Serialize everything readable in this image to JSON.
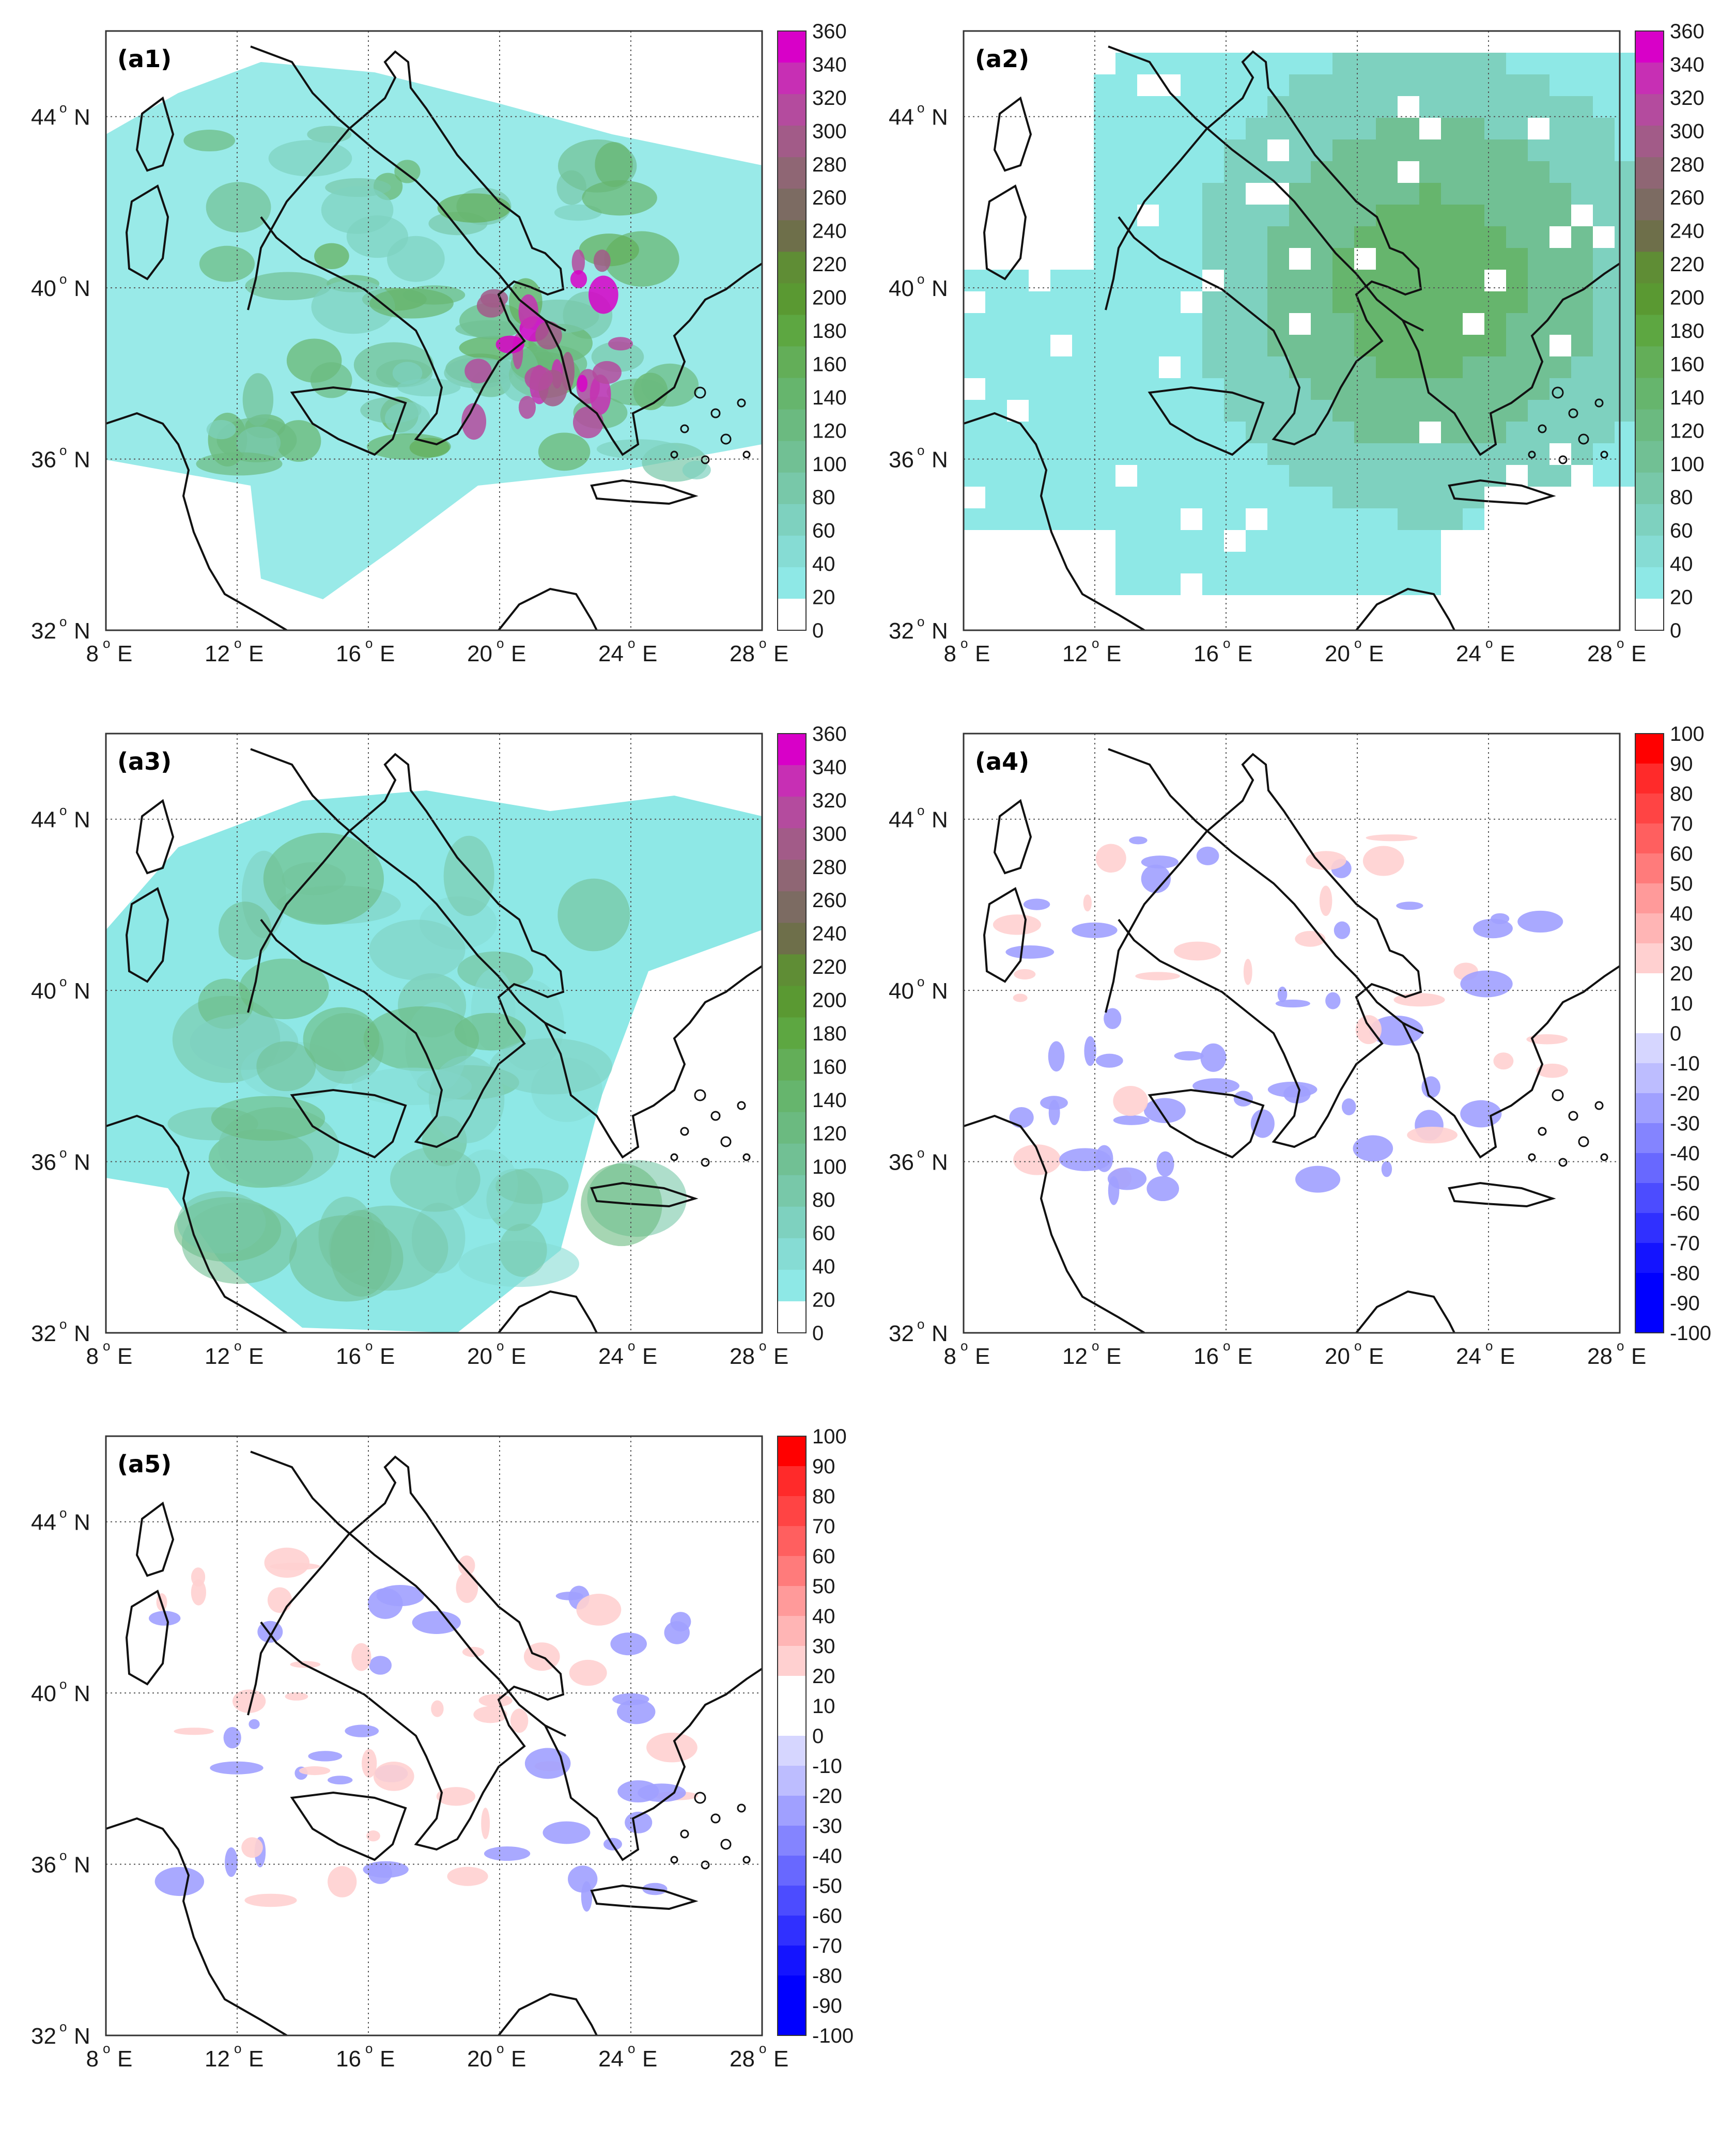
{
  "figure": {
    "x_ticks": [
      "8",
      "12",
      "16",
      "20",
      "24",
      "28"
    ],
    "x_suffix": "E",
    "y_ticks": [
      "32",
      "36",
      "40",
      "44"
    ],
    "y_suffix": "N",
    "degree_symbol": "o"
  },
  "colorbars": {
    "sequential": {
      "ticks": [
        "360",
        "340",
        "320",
        "300",
        "280",
        "260",
        "240",
        "220",
        "200",
        "180",
        "160",
        "140",
        "120",
        "100",
        "80",
        "60",
        "40",
        "20",
        "0"
      ],
      "colors": [
        "#d800c8",
        "#c72fb4",
        "#b44b9e",
        "#a25b88",
        "#8f6674",
        "#7c6b62",
        "#6e6f4a",
        "#5f8d35",
        "#5a9932",
        "#5da741",
        "#63ae58",
        "#66b56d",
        "#6bba80",
        "#71c094",
        "#78c8a9",
        "#7ed1bf",
        "#86dcd4",
        "#8ee8e6",
        "#ffffff"
      ]
    },
    "diverging": {
      "ticks": [
        "100",
        "90",
        "80",
        "70",
        "60",
        "50",
        "40",
        "30",
        "20",
        "10",
        "0",
        "-10",
        "-20",
        "-30",
        "-40",
        "-50",
        "-60",
        "-70",
        "-80",
        "-90",
        "-100"
      ],
      "colors": [
        "#ff0000",
        "#ff2a2a",
        "#ff4444",
        "#ff5f5f",
        "#ff7b7b",
        "#ff9a9a",
        "#ffb5b5",
        "#ffd0d0",
        "#ffffff",
        "#ffffff",
        "#d6d6ff",
        "#bdbdff",
        "#a0a0ff",
        "#8484ff",
        "#6868ff",
        "#4c4cff",
        "#3030ff",
        "#1414ff",
        "#0000ff",
        "#0000ff"
      ]
    }
  },
  "panels": [
    {
      "id": "a1",
      "label": "(a1)",
      "colorbar": "sequential"
    },
    {
      "id": "a2",
      "label": "(a2)",
      "colorbar": "sequential"
    },
    {
      "id": "a3",
      "label": "(a3)",
      "colorbar": "sequential"
    },
    {
      "id": "a4",
      "label": "(a4)",
      "colorbar": "diverging"
    },
    {
      "id": "a5",
      "label": "(a5)",
      "colorbar": "diverging"
    }
  ]
}
